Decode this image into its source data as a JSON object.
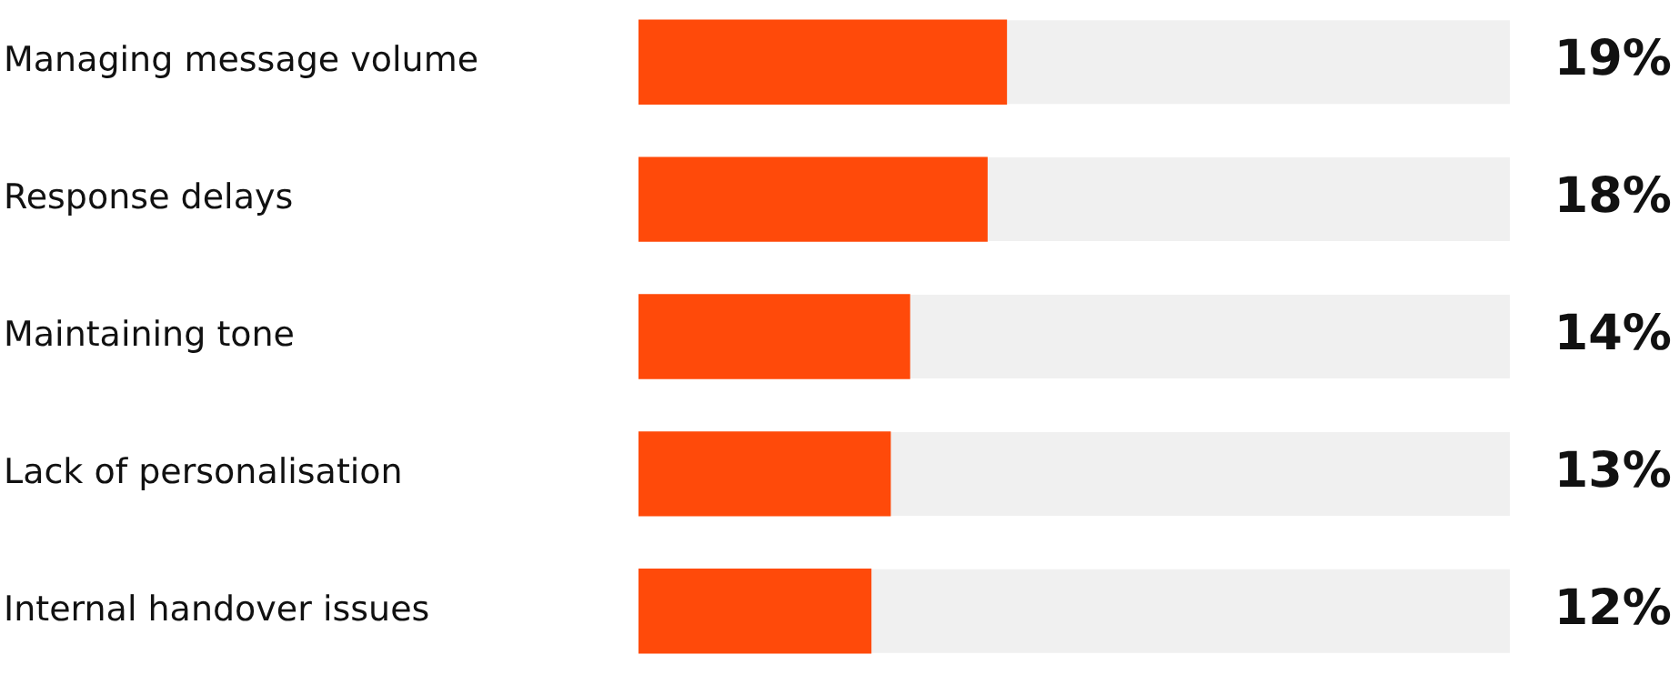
{
  "chart_data": {
    "type": "bar",
    "orientation": "horizontal",
    "categories": [
      "Managing message volume",
      "Response delays",
      "Maintaining tone",
      "Lack of personalisation",
      "Internal handover issues"
    ],
    "values": [
      19,
      18,
      14,
      13,
      12
    ],
    "value_labels": [
      "19%",
      "18%",
      "14%",
      "13%",
      "12%"
    ],
    "color": "#ff4a0a",
    "tick_labels": "y",
    "grid": false,
    "legend": false
  }
}
